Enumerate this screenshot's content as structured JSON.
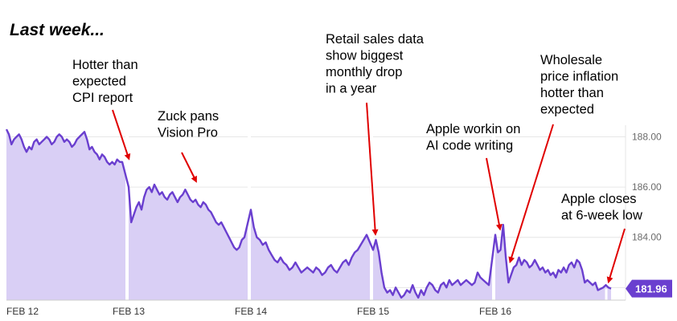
{
  "title": "Last week...",
  "colors": {
    "line": "#6a3fcf",
    "area": "#d9cff5",
    "grid": "#e6e6e6",
    "session_break": "#ffffff",
    "arrow": "#e00000",
    "badge": "#6a3fcf"
  },
  "chart_data": {
    "type": "area",
    "x_ticks": [
      "FEB 12",
      "FEB 13",
      "FEB 14",
      "FEB 15",
      "FEB 16"
    ],
    "y_ticks": [
      "188.00",
      "186.00",
      "184.00",
      "182.00"
    ],
    "ylim": [
      181.5,
      188.4
    ],
    "last_price": "181.96",
    "legend": "none",
    "grid": true,
    "series": [
      {
        "days": [
          {
            "day": "FEB 12",
            "values": [
              188.3,
              188.1,
              187.7,
              187.9,
              188.0,
              188.1,
              187.9,
              187.6,
              187.4,
              187.6,
              187.5,
              187.8,
              187.9,
              187.7,
              187.8,
              187.9,
              188.0,
              187.9,
              187.7,
              187.8,
              188.0,
              188.1,
              188.0,
              187.8,
              187.9,
              187.8,
              187.6,
              187.7,
              187.9,
              188.0,
              188.1,
              188.2,
              187.9,
              187.5,
              187.6,
              187.4,
              187.3,
              187.1,
              187.3,
              187.2,
              187.0,
              186.9,
              187.0,
              186.9,
              187.1,
              187.0,
              187.0
            ]
          },
          {
            "day": "FEB 13",
            "values": [
              186.0,
              184.6,
              184.9,
              185.2,
              185.4,
              185.1,
              185.6,
              185.9,
              186.0,
              185.8,
              186.1,
              185.9,
              185.7,
              185.8,
              185.6,
              185.5,
              185.7,
              185.8,
              185.6,
              185.4,
              185.6,
              185.7,
              185.9,
              185.7,
              185.5,
              185.4,
              185.5,
              185.3,
              185.2,
              185.4,
              185.3,
              185.1,
              185.0,
              184.8,
              184.6,
              184.5,
              184.6,
              184.4,
              184.2,
              184.0,
              183.8,
              183.6,
              183.5,
              183.6,
              183.9,
              184.0
            ]
          },
          {
            "day": "FEB 14",
            "values": [
              185.1,
              184.4,
              184.0,
              183.9,
              183.7,
              183.8,
              183.5,
              183.3,
              183.1,
              183.0,
              183.2,
              183.0,
              182.9,
              182.7,
              182.8,
              183.0,
              182.8,
              182.6,
              182.7,
              182.8,
              182.7,
              182.6,
              182.8,
              182.7,
              182.5,
              182.6,
              182.8,
              182.9,
              182.7,
              182.6,
              182.8,
              183.0,
              183.1,
              182.9,
              183.2,
              183.4,
              183.5,
              183.7,
              183.9,
              184.1
            ]
          },
          {
            "day": "FEB 15",
            "values": [
              183.5,
              183.9,
              183.4,
              182.6,
              182.0,
              181.8,
              181.9,
              181.7,
              182.0,
              181.8,
              181.6,
              181.7,
              181.9,
              181.8,
              182.1,
              181.8,
              181.6,
              181.9,
              181.7,
              182.0,
              182.2,
              182.1,
              181.9,
              181.8,
              182.1,
              182.2,
              182.0,
              182.3,
              182.1,
              182.2,
              182.3,
              182.1,
              182.2,
              182.3,
              182.2,
              182.1,
              182.2,
              182.6,
              182.4,
              182.3,
              182.2,
              182.1
            ]
          },
          {
            "day": "FEB 16",
            "values": [
              184.1,
              183.4,
              183.5,
              184.5,
              183.2,
              182.2,
              182.5,
              182.8,
              182.9,
              183.2,
              182.9,
              183.1,
              183.0,
              182.8,
              182.9,
              183.1,
              182.9,
              182.7,
              182.8,
              182.6,
              182.7,
              182.5,
              182.6,
              182.4,
              182.7,
              182.6,
              182.8,
              182.6,
              182.9,
              183.0,
              182.8,
              183.1,
              183.0,
              182.7,
              182.2,
              182.3,
              182.2,
              182.1,
              182.2,
              181.9,
              181.95,
              182.0,
              182.1,
              182.0,
              181.96
            ]
          }
        ]
      }
    ],
    "annotations": [
      {
        "text": [
          "Hotter than",
          "expected",
          "CPI report"
        ],
        "day": 1,
        "frac": 0.0,
        "price": 186.9
      },
      {
        "text": [
          "Zuck pans",
          "Vision Pro"
        ],
        "day": 1,
        "frac": 0.58,
        "price": 186.0
      },
      {
        "text": [
          "Retail sales data",
          "show biggest",
          "monthly drop",
          "in a year"
        ],
        "day": 3,
        "frac": 0.02,
        "price": 183.9
      },
      {
        "text": [
          "Apple workin on",
          "AI code writing"
        ],
        "day": 4,
        "frac": 0.04,
        "price": 184.1
      },
      {
        "text": [
          "Wholesale",
          "price inflation",
          "hotter than",
          "expected"
        ],
        "day": 4,
        "frac": 0.13,
        "price": 182.8
      },
      {
        "text": [
          "Apple closes",
          "at 6-week low"
        ],
        "day": 4,
        "frac": 0.98,
        "price": 182.0
      }
    ]
  }
}
